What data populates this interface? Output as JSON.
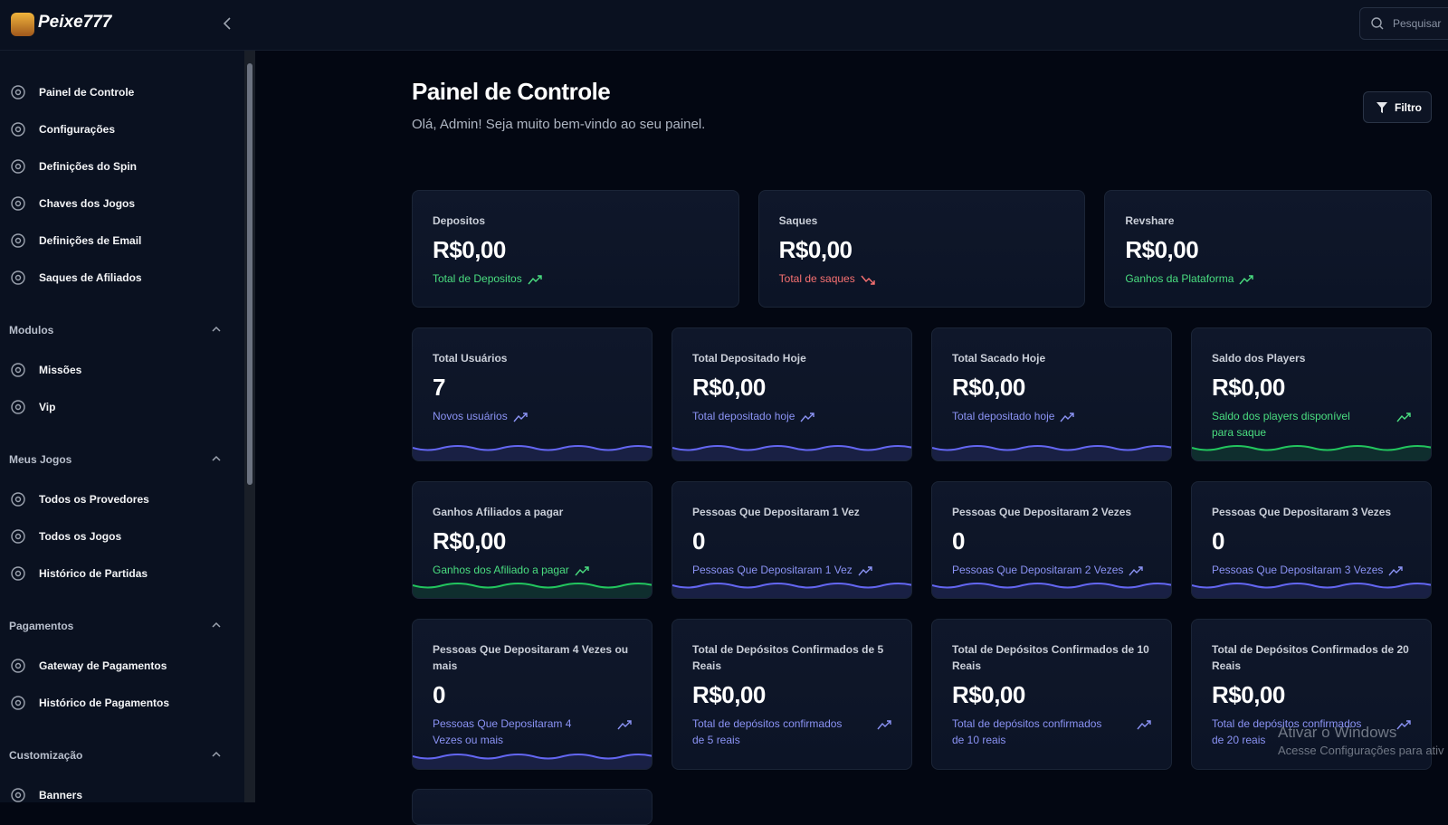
{
  "header": {
    "logo": "Peixe777",
    "search_placeholder": "Pesquisar"
  },
  "sidebar": {
    "items": [
      "Painel de Controle",
      "Configurações",
      "Definições do Spin",
      "Chaves dos Jogos",
      "Definições de Email",
      "Saques de Afiliados"
    ],
    "sections": [
      {
        "title": "Modulos",
        "items": [
          "Missões",
          "Vip"
        ]
      },
      {
        "title": "Meus Jogos",
        "items": [
          "Todos os Provedores",
          "Todos os Jogos",
          "Histórico de Partidas"
        ]
      },
      {
        "title": "Pagamentos",
        "items": [
          "Gateway de Pagamentos",
          "Histórico de Pagamentos"
        ]
      },
      {
        "title": "Customização",
        "items": [
          "Banners"
        ]
      }
    ]
  },
  "page": {
    "title": "Painel de Controle",
    "subtitle": "Olá, Admin! Seja muito bem-vindo ao seu painel.",
    "filter_button": "Filtro"
  },
  "cards": [
    {
      "label": "Depositos",
      "value": "R$0,00",
      "note": "Total de Depositos",
      "trend": "up",
      "tone": "green",
      "sparkline": false
    },
    {
      "label": "Saques",
      "value": "R$0,00",
      "note": "Total de saques",
      "trend": "down",
      "tone": "red",
      "sparkline": false
    },
    {
      "label": "Revshare",
      "value": "R$0,00",
      "note": "Ganhos da Plataforma",
      "trend": "up",
      "tone": "green",
      "sparkline": false
    },
    {
      "label": "Total Usuários",
      "value": "7",
      "note": "Novos usuários",
      "trend": "up",
      "tone": "blue",
      "sparkline": true
    },
    {
      "label": "Total Depositado Hoje",
      "value": "R$0,00",
      "note": "Total depositado hoje",
      "trend": "up",
      "tone": "blue",
      "sparkline": true
    },
    {
      "label": "Total Sacado Hoje",
      "value": "R$0,00",
      "note": "Total depositado hoje",
      "trend": "up",
      "tone": "blue",
      "sparkline": true
    },
    {
      "label": "Saldo dos Players",
      "value": "R$0,00",
      "note": "Saldo dos players disponível para saque",
      "trend": "up",
      "tone": "green",
      "sparkline": true
    },
    {
      "label": "Ganhos Afiliados a pagar",
      "value": "R$0,00",
      "note": "Ganhos dos Afiliado a pagar",
      "trend": "up",
      "tone": "green",
      "sparkline": true
    },
    {
      "label": "Pessoas Que Depositaram 1 Vez",
      "value": "0",
      "note": "Pessoas Que Depositaram 1 Vez",
      "trend": "up",
      "tone": "blue",
      "sparkline": true
    },
    {
      "label": "Pessoas Que Depositaram 2 Vezes",
      "value": "0",
      "note": "Pessoas Que Depositaram 2 Vezes",
      "trend": "up",
      "tone": "blue",
      "sparkline": true
    },
    {
      "label": "Pessoas Que Depositaram 3 Vezes",
      "value": "0",
      "note": "Pessoas Que Depositaram 3 Vezes",
      "trend": "up",
      "tone": "blue",
      "sparkline": true
    },
    {
      "label": "Pessoas Que Depositaram 4 Vezes ou mais",
      "value": "0",
      "note": "Pessoas Que Depositaram 4 Vezes ou mais",
      "trend": "up",
      "tone": "blue",
      "sparkline": true
    },
    {
      "label": "Total de Depósitos Confirmados de 5 Reais",
      "value": "R$0,00",
      "note": "Total de depósitos confirmados de 5 reais",
      "trend": "up",
      "tone": "blue",
      "sparkline": false
    },
    {
      "label": "Total de Depósitos Confirmados de 10 Reais",
      "value": "R$0,00",
      "note": "Total de depósitos confirmados de 10 reais",
      "trend": "up",
      "tone": "blue",
      "sparkline": false
    },
    {
      "label": "Total de Depósitos Confirmados de 20 Reais",
      "value": "R$0,00",
      "note": "Total de depósitos confirmados de 20 reais",
      "trend": "up",
      "tone": "blue",
      "sparkline": false
    }
  ],
  "watermark": {
    "title": "Ativar o Windows",
    "text": "Acesse Configurações para ativ"
  }
}
